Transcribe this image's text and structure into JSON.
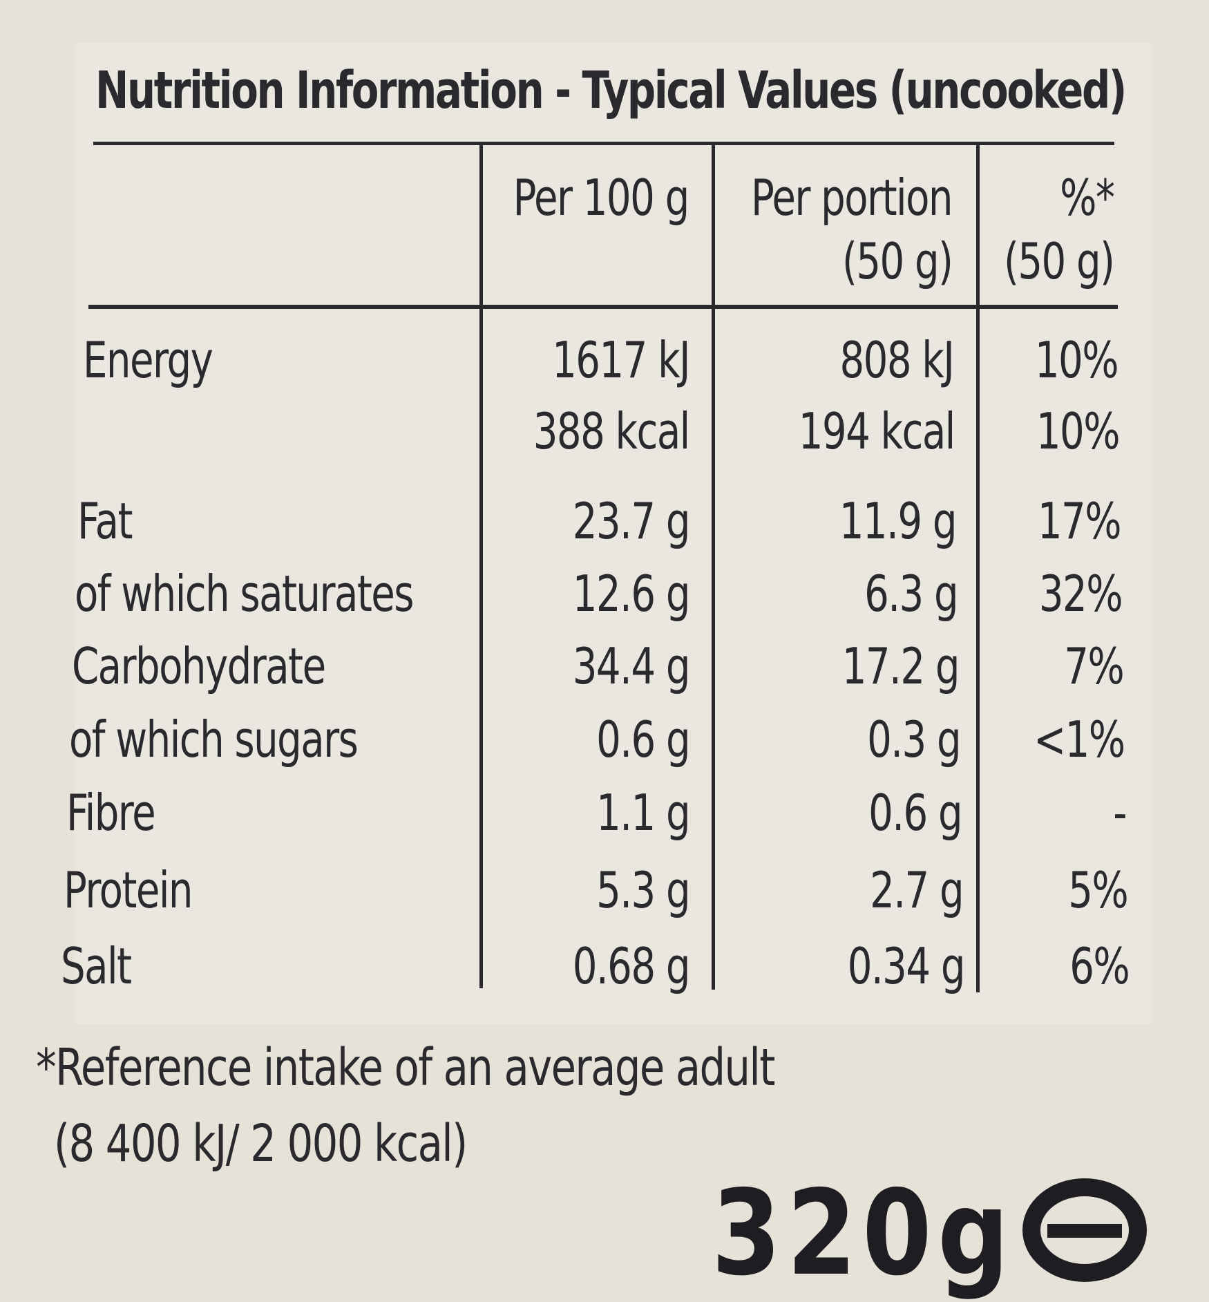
{
  "title": "Nutrition Information - Typical Values (uncooked)",
  "columns": {
    "per100_label": "Per 100 g",
    "portion_line1": "Per portion",
    "portion_line2": "(50 g)",
    "ri_line1": "%*",
    "ri_line2": "(50 g)"
  },
  "rows": [
    {
      "name": "Energy",
      "per100": "1617 kJ",
      "portion": "808 kJ",
      "ri": "10%"
    },
    {
      "name": "",
      "per100": "388 kcal",
      "portion": "194 kcal",
      "ri": "10%"
    },
    {
      "name": "Fat",
      "per100": "23.7 g",
      "portion": "11.9 g",
      "ri": "17%"
    },
    {
      "name": "of which saturates",
      "per100": "12.6 g",
      "portion": "6.3 g",
      "ri": "32%"
    },
    {
      "name": "Carbohydrate",
      "per100": "34.4 g",
      "portion": "17.2 g",
      "ri": "7%"
    },
    {
      "name": "of which sugars",
      "per100": "0.6 g",
      "portion": "0.3 g",
      "ri": "<1%"
    },
    {
      "name": "Fibre",
      "per100": "1.1 g",
      "portion": "0.6 g",
      "ri": "-"
    },
    {
      "name": "Protein",
      "per100": "5.3 g",
      "portion": "2.7 g",
      "ri": "5%"
    },
    {
      "name": "Salt",
      "per100": "0.68 g",
      "portion": "0.34 g",
      "ri": "6%"
    }
  ],
  "footnote": {
    "line1": "*Reference intake of an average adult",
    "line2": "(8 400 kJ/ 2 000 kcal)"
  },
  "net_weight": "320g"
}
